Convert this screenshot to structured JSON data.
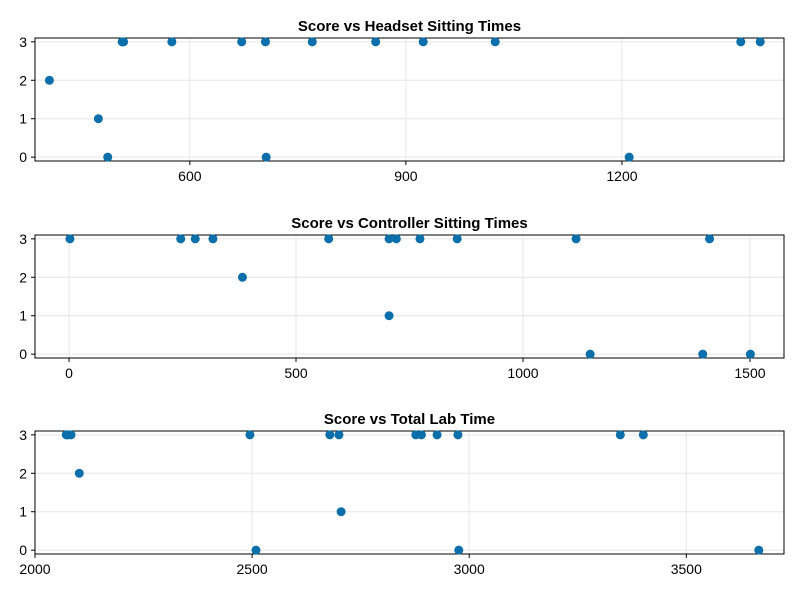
{
  "colors": {
    "marker": "#0a6fab",
    "grid": "#e6e6e6",
    "frame": "#000000",
    "background": "#ffffff"
  },
  "chart_data": [
    {
      "type": "scatter",
      "title": "Score vs Headset Sitting Times",
      "xlabel": "",
      "ylabel": "",
      "grid": true,
      "xlim": [
        385,
        1425
      ],
      "ylim": [
        -0.1,
        3.1
      ],
      "xticks": [
        600,
        900,
        1200
      ],
      "xtick_labels": [
        "600",
        "900",
        "1200"
      ],
      "yticks": [
        0,
        1,
        2,
        3
      ],
      "ytick_labels": [
        "0",
        "1",
        "2",
        "3"
      ],
      "points": [
        {
          "x": 405,
          "y": 2
        },
        {
          "x": 473,
          "y": 1
        },
        {
          "x": 486,
          "y": 0
        },
        {
          "x": 506,
          "y": 3
        },
        {
          "x": 508,
          "y": 3
        },
        {
          "x": 575,
          "y": 3
        },
        {
          "x": 672,
          "y": 3
        },
        {
          "x": 705,
          "y": 3
        },
        {
          "x": 706,
          "y": 0
        },
        {
          "x": 770,
          "y": 3
        },
        {
          "x": 858,
          "y": 3
        },
        {
          "x": 924,
          "y": 3
        },
        {
          "x": 1024,
          "y": 3
        },
        {
          "x": 1210,
          "y": 0
        },
        {
          "x": 1365,
          "y": 3
        },
        {
          "x": 1392,
          "y": 3
        }
      ]
    },
    {
      "type": "scatter",
      "title": "Score vs Controller Sitting Times",
      "xlabel": "",
      "ylabel": "",
      "grid": true,
      "xlim": [
        -75,
        1575
      ],
      "ylim": [
        -0.1,
        3.1
      ],
      "xticks": [
        0,
        500,
        1000,
        1500
      ],
      "xtick_labels": [
        "0",
        "500",
        "1000",
        "1500"
      ],
      "yticks": [
        0,
        1,
        2,
        3
      ],
      "ytick_labels": [
        "0",
        "1",
        "2",
        "3"
      ],
      "points": [
        {
          "x": 2,
          "y": 3
        },
        {
          "x": 246,
          "y": 3
        },
        {
          "x": 278,
          "y": 3
        },
        {
          "x": 317,
          "y": 3
        },
        {
          "x": 382,
          "y": 2
        },
        {
          "x": 572,
          "y": 3
        },
        {
          "x": 705,
          "y": 3
        },
        {
          "x": 705,
          "y": 1
        },
        {
          "x": 721,
          "y": 3
        },
        {
          "x": 773,
          "y": 3
        },
        {
          "x": 855,
          "y": 3
        },
        {
          "x": 1117,
          "y": 3
        },
        {
          "x": 1148,
          "y": 0
        },
        {
          "x": 1396,
          "y": 0
        },
        {
          "x": 1411,
          "y": 3
        },
        {
          "x": 1501,
          "y": 0
        }
      ]
    },
    {
      "type": "scatter",
      "title": "Score vs Total Lab Time",
      "xlabel": "",
      "ylabel": "",
      "grid": true,
      "xlim": [
        2000,
        3725
      ],
      "ylim": [
        -0.1,
        3.1
      ],
      "xticks": [
        2000,
        2500,
        3000,
        3500
      ],
      "xtick_labels": [
        "2000",
        "2500",
        "3000",
        "3500"
      ],
      "yticks": [
        0,
        1,
        2,
        3
      ],
      "ytick_labels": [
        "0",
        "1",
        "2",
        "3"
      ],
      "points": [
        {
          "x": 2072,
          "y": 3
        },
        {
          "x": 2076,
          "y": 3
        },
        {
          "x": 2083,
          "y": 3
        },
        {
          "x": 2102,
          "y": 2
        },
        {
          "x": 2495,
          "y": 3
        },
        {
          "x": 2509,
          "y": 0
        },
        {
          "x": 2679,
          "y": 3
        },
        {
          "x": 2700,
          "y": 3
        },
        {
          "x": 2705,
          "y": 1
        },
        {
          "x": 2877,
          "y": 3
        },
        {
          "x": 2890,
          "y": 3
        },
        {
          "x": 2926,
          "y": 3
        },
        {
          "x": 2974,
          "y": 3
        },
        {
          "x": 2976,
          "y": 0
        },
        {
          "x": 3348,
          "y": 3
        },
        {
          "x": 3401,
          "y": 3
        },
        {
          "x": 3667,
          "y": 0
        }
      ]
    }
  ]
}
